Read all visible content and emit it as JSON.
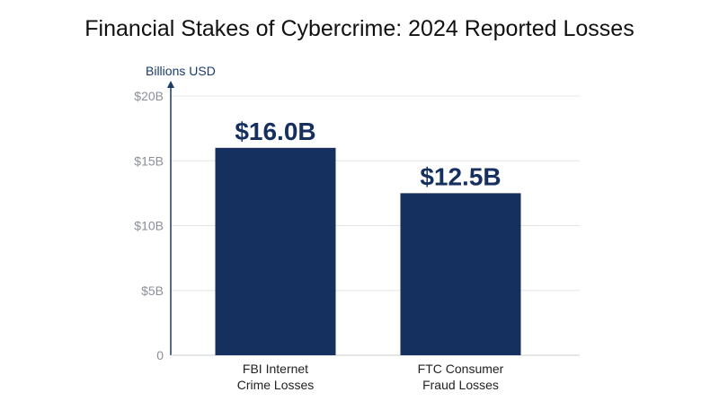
{
  "chart_data": {
    "type": "bar",
    "title": "Financial Stakes of Cybercrime: 2024 Reported Losses",
    "ylabel": "Billions USD",
    "xlabel": "",
    "ylim": [
      0,
      20
    ],
    "yticks": [
      0,
      5,
      10,
      15,
      20
    ],
    "ytick_labels": [
      "0",
      "$5B",
      "$10B",
      "$15B",
      "$20B"
    ],
    "categories": [
      [
        "FBI Internet",
        "Crime Losses"
      ],
      [
        "FTC Consumer",
        "Fraud Losses"
      ]
    ],
    "values": [
      16.0,
      12.5
    ],
    "data_labels": [
      "$16.0B",
      "$12.5B"
    ],
    "grid": true,
    "colors": {
      "bar": "#152f5e",
      "axis": "#1a3a6a",
      "grid": "#e3e5e8"
    }
  }
}
